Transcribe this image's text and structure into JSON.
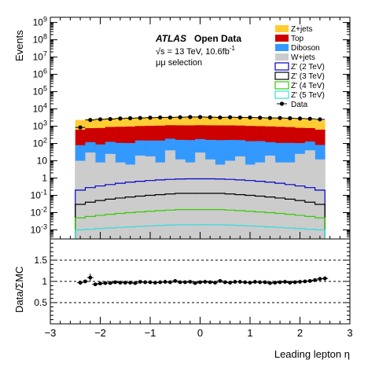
{
  "chart_data": [
    {
      "type": "stacked-histogram",
      "title": "",
      "xlabel": "Leading lepton η",
      "ylabel": "Events",
      "yscale": "log",
      "xlim": [
        -3,
        3
      ],
      "ylim": [
        0.0003,
        2000000000
      ],
      "x_ticks": [
        "−3",
        "−2",
        "−1",
        "0",
        "1",
        "2",
        "3"
      ],
      "y_ticks": [
        {
          "value": 0.001,
          "base": "10",
          "exp": "-3"
        },
        {
          "value": 0.01,
          "base": "10",
          "exp": "-2"
        },
        {
          "value": 0.1,
          "base": "10",
          "exp": "-1"
        },
        {
          "value": 1,
          "label": "1"
        },
        {
          "value": 10,
          "label": "10"
        },
        {
          "value": 100,
          "label": "10",
          "exp": "2"
        },
        {
          "value": 1000,
          "label": "10",
          "exp": "3"
        },
        {
          "value": 10000,
          "label": "10",
          "exp": "4"
        },
        {
          "value": 100000,
          "label": "10",
          "exp": "5"
        },
        {
          "value": 1000000,
          "label": "10",
          "exp": "6"
        },
        {
          "value": 10000000,
          "label": "10",
          "exp": "7"
        },
        {
          "value": 100000000,
          "label": "10",
          "exp": "8"
        },
        {
          "value": 1000000000,
          "label": "10",
          "exp": "9"
        }
      ],
      "bin_edges": [
        -2.5,
        -2.3,
        -2.1,
        -1.9,
        -1.7,
        -1.5,
        -1.3,
        -1.1,
        -0.9,
        -0.7,
        -0.5,
        -0.3,
        -0.1,
        0.1,
        0.3,
        0.5,
        0.7,
        0.9,
        1.1,
        1.3,
        1.5,
        1.7,
        1.9,
        2.1,
        2.3,
        2.5
      ],
      "stacked_series": [
        {
          "name": "W+jets",
          "color": "#cccccc",
          "values": [
            10,
            30,
            8,
            25,
            8,
            6,
            20,
            18,
            8,
            40,
            12,
            8,
            30,
            12,
            6,
            10,
            18,
            6,
            8,
            20,
            8,
            8,
            25,
            40,
            12
          ]
        },
        {
          "name": "Diboson",
          "color": "#3399ff",
          "values": [
            70,
            90,
            80,
            100,
            100,
            100,
            130,
            130,
            140,
            150,
            150,
            150,
            150,
            150,
            150,
            150,
            140,
            130,
            130,
            100,
            100,
            100,
            80,
            90,
            70
          ]
        },
        {
          "name": "Top",
          "color": "#cc0000",
          "values": [
            550,
            650,
            700,
            780,
            820,
            850,
            870,
            900,
            930,
            950,
            960,
            960,
            960,
            960,
            960,
            950,
            930,
            900,
            870,
            850,
            820,
            780,
            700,
            650,
            550
          ]
        },
        {
          "name": "Z+jets",
          "color": "#ffcc33",
          "values": [
            1650,
            1850,
            1950,
            2050,
            2150,
            2200,
            2250,
            2300,
            2400,
            2400,
            2500,
            2500,
            2500,
            2500,
            2500,
            2400,
            2400,
            2300,
            2250,
            2200,
            2150,
            2050,
            1950,
            1850,
            1650
          ]
        }
      ],
      "overlay_series": [
        {
          "name": "Z' (2 TeV)",
          "color": "#0000cc",
          "values": [
            0.2,
            0.28,
            0.35,
            0.42,
            0.5,
            0.58,
            0.65,
            0.72,
            0.78,
            0.84,
            0.88,
            0.9,
            0.9,
            0.9,
            0.88,
            0.84,
            0.78,
            0.72,
            0.65,
            0.58,
            0.5,
            0.42,
            0.35,
            0.28,
            0.2
          ]
        },
        {
          "name": "Z' (3 TeV)",
          "color": "#000000",
          "values": [
            0.03,
            0.04,
            0.05,
            0.06,
            0.07,
            0.08,
            0.09,
            0.1,
            0.11,
            0.12,
            0.13,
            0.13,
            0.13,
            0.13,
            0.13,
            0.12,
            0.11,
            0.1,
            0.09,
            0.08,
            0.07,
            0.06,
            0.05,
            0.04,
            0.03
          ]
        },
        {
          "name": "Z' (4 TeV)",
          "color": "#33cc00",
          "values": [
            0.005,
            0.006,
            0.007,
            0.008,
            0.009,
            0.01,
            0.011,
            0.012,
            0.013,
            0.014,
            0.015,
            0.015,
            0.015,
            0.015,
            0.015,
            0.014,
            0.013,
            0.012,
            0.011,
            0.01,
            0.009,
            0.008,
            0.007,
            0.006,
            0.005
          ]
        },
        {
          "name": "Z' (5 TeV)",
          "color": "#33dddd",
          "values": [
            0.001,
            0.0011,
            0.0012,
            0.0013,
            0.0014,
            0.0015,
            0.0016,
            0.0017,
            0.0018,
            0.0019,
            0.002,
            0.002,
            0.002,
            0.002,
            0.002,
            0.0019,
            0.0018,
            0.0017,
            0.0016,
            0.0015,
            0.0014,
            0.0013,
            0.0012,
            0.0011,
            0.001
          ]
        }
      ],
      "data_series": {
        "name": "Data",
        "x": [
          -2.4,
          -2.2,
          -2.0,
          -1.8,
          -1.6,
          -1.4,
          -1.2,
          -1.0,
          -0.8,
          -0.6,
          -0.4,
          -0.2,
          0.0,
          0.2,
          0.4,
          0.6,
          0.8,
          1.0,
          1.2,
          1.4,
          1.6,
          1.8,
          2.0,
          2.2,
          2.4
        ],
        "values": [
          850,
          2300,
          2500,
          2600,
          2800,
          2900,
          3000,
          3100,
          3200,
          3200,
          3300,
          3400,
          3400,
          3300,
          3200,
          3300,
          3200,
          3200,
          3100,
          3000,
          3000,
          2900,
          2800,
          2700,
          2500
        ]
      },
      "legend": {
        "placement": "top-right",
        "entries": [
          {
            "name": "Z+jets",
            "style": "fill",
            "color": "#ffcc33"
          },
          {
            "name": "Top",
            "style": "fill",
            "color": "#cc0000"
          },
          {
            "name": "Diboson",
            "style": "fill",
            "color": "#3399ff"
          },
          {
            "name": "W+jets",
            "style": "fill",
            "color": "#cccccc"
          },
          {
            "name": "Z' (2 TeV)",
            "style": "line",
            "color": "#0000cc"
          },
          {
            "name": "Z' (3 TeV)",
            "style": "line",
            "color": "#000000"
          },
          {
            "name": "Z' (4 TeV)",
            "style": "line",
            "color": "#33cc00"
          },
          {
            "name": "Z' (5 TeV)",
            "style": "line",
            "color": "#33dddd"
          },
          {
            "name": "Data",
            "style": "marker",
            "color": "#000000"
          }
        ]
      },
      "annotations": {
        "experiment": "ATLAS",
        "label": "Open Data",
        "energy_prefix": "√s = 13 TeV, 10.6",
        "lumi_unit": "fb",
        "lumi_exp": "-1",
        "selection": "μμ selection"
      }
    },
    {
      "type": "ratio-scatter",
      "xlabel": "Leading lepton η",
      "ylabel": "Data/ΣMC",
      "xlim": [
        -3,
        3
      ],
      "ylim": [
        0,
        2
      ],
      "x_ticks": [
        "−3",
        "−2",
        "−1",
        "0",
        "1",
        "2",
        "3"
      ],
      "y_ticks": [
        {
          "value": 0.5,
          "label": "0.5"
        },
        {
          "value": 1,
          "label": "1"
        },
        {
          "value": 1.5,
          "label": "1.5"
        }
      ],
      "reference_lines": [
        0.5,
        1.0,
        1.5
      ],
      "x": [
        -2.4,
        -2.3,
        -2.2,
        -2.1,
        -2.0,
        -1.9,
        -1.8,
        -1.7,
        -1.6,
        -1.5,
        -1.4,
        -1.3,
        -1.2,
        -1.1,
        -1.0,
        -0.9,
        -0.8,
        -0.7,
        -0.6,
        -0.5,
        -0.4,
        -0.3,
        -0.2,
        -0.1,
        0.0,
        0.1,
        0.2,
        0.3,
        0.4,
        0.5,
        0.6,
        0.7,
        0.8,
        0.9,
        1.0,
        1.1,
        1.2,
        1.3,
        1.4,
        1.5,
        1.6,
        1.7,
        1.8,
        1.9,
        2.0,
        2.1,
        2.2,
        2.3,
        2.4,
        2.5
      ],
      "values": [
        0.97,
        1.0,
        1.09,
        0.93,
        0.95,
        0.96,
        0.96,
        0.98,
        0.97,
        0.97,
        0.97,
        0.96,
        0.99,
        0.98,
        0.98,
        0.97,
        0.98,
        0.99,
        0.98,
        1.01,
        0.98,
        0.98,
        0.99,
        0.96,
        0.98,
        0.99,
        0.98,
        0.97,
        1.01,
        0.98,
        0.97,
        0.99,
        0.99,
        0.98,
        0.97,
        0.99,
        0.98,
        0.98,
        0.96,
        0.97,
        0.98,
        0.99,
        0.97,
        0.98,
        0.99,
        1.0,
        1.01,
        1.03,
        1.06,
        1.07
      ],
      "errors": [
        0.05,
        0.04,
        0.09,
        0.04,
        0.03,
        0.03,
        0.03,
        0.03,
        0.03,
        0.03,
        0.03,
        0.03,
        0.03,
        0.03,
        0.03,
        0.03,
        0.03,
        0.03,
        0.03,
        0.03,
        0.03,
        0.03,
        0.03,
        0.03,
        0.03,
        0.03,
        0.03,
        0.03,
        0.03,
        0.03,
        0.03,
        0.03,
        0.03,
        0.03,
        0.03,
        0.03,
        0.03,
        0.03,
        0.03,
        0.03,
        0.03,
        0.03,
        0.03,
        0.03,
        0.03,
        0.03,
        0.03,
        0.03,
        0.04,
        0.05
      ]
    }
  ]
}
